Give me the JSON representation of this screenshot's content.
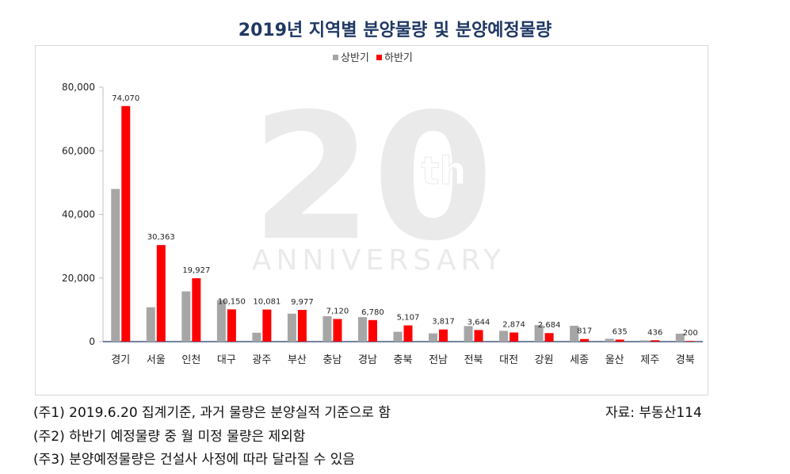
{
  "chart_data": {
    "type": "bar",
    "title": "2019년 지역별 분양물량 및 분양예정물량",
    "categories": [
      "경기",
      "서울",
      "인천",
      "대구",
      "광주",
      "부산",
      "충남",
      "경남",
      "충북",
      "전남",
      "전북",
      "대전",
      "강원",
      "세종",
      "울산",
      "제주",
      "경북"
    ],
    "series": [
      {
        "name": "상반기",
        "color": "#a6a6a6",
        "values": [
          48000,
          10800,
          15800,
          13100,
          2800,
          8800,
          8000,
          7700,
          3100,
          2600,
          4900,
          3400,
          5200,
          5000,
          900,
          400,
          2500
        ]
      },
      {
        "name": "하반기",
        "color": "#ff0000",
        "values": [
          74070,
          30363,
          19927,
          10150,
          10081,
          9977,
          7120,
          6780,
          5107,
          3817,
          3644,
          2874,
          2684,
          817,
          635,
          436,
          200
        ]
      }
    ],
    "data_labels": [
      "74,070",
      "30,363",
      "19,927",
      "10,150",
      "10,081",
      "9,977",
      "7,120",
      "6,780",
      "5,107",
      "3,817",
      "3,644",
      "2,874",
      "2,684",
      "817",
      "635",
      "436",
      "200"
    ],
    "ylim": [
      0,
      80000
    ],
    "yticks": [
      0,
      20000,
      40000,
      60000,
      80000
    ],
    "ytick_labels": [
      "0",
      "20,000",
      "40,000",
      "60,000",
      "80,000"
    ],
    "legend_position": "top-center",
    "grid": false
  },
  "notes": [
    "(주1) 2019.6.20 집계기준, 과거 물량은 분양실적 기준으로 함",
    "(주2) 하반기 예정물량 중 월 미정 물량은 제외함",
    "(주3) 분양예정물량은 건설사 사정에 따라 달라질 수 있음"
  ],
  "source": "자료: 부동산114",
  "watermark": {
    "numeral": "20",
    "suffix": "th",
    "word": "ANNIVERSARY"
  }
}
